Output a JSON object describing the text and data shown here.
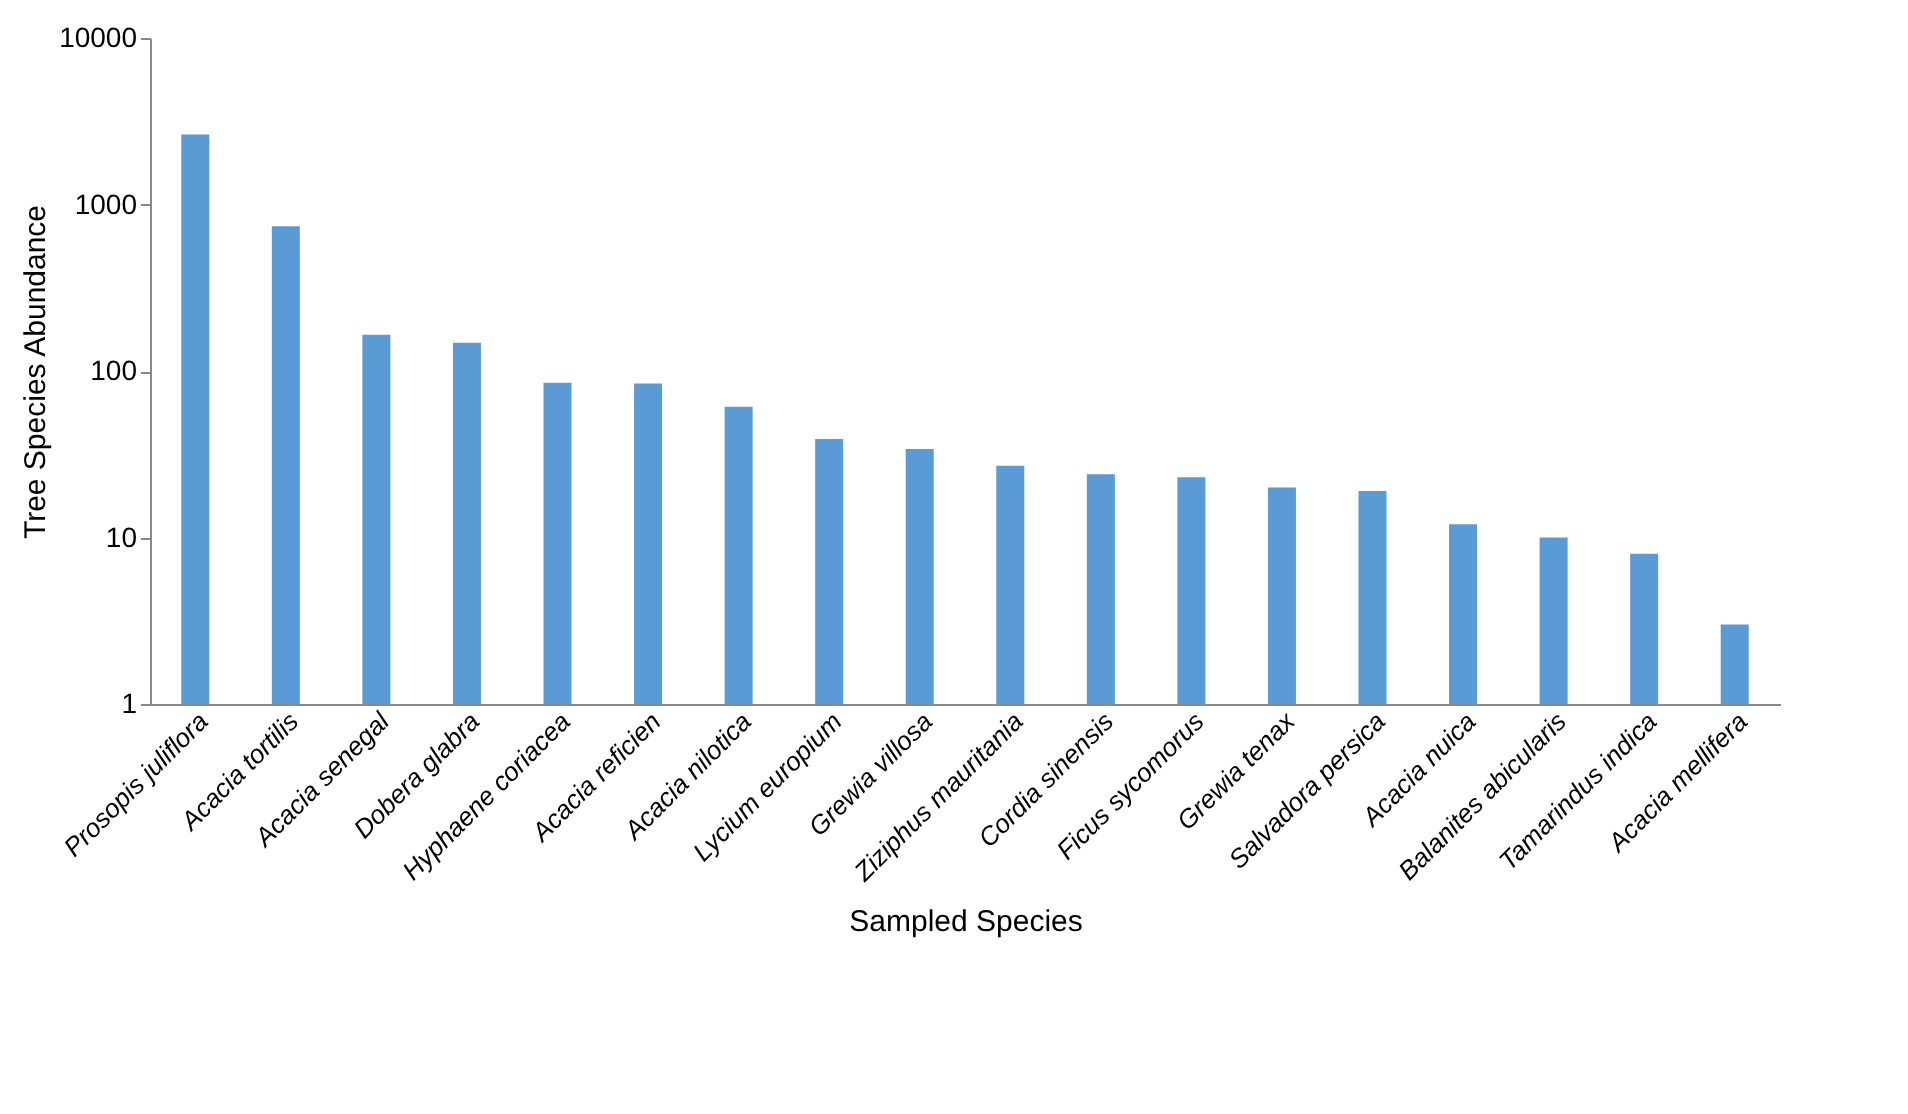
{
  "chart_data": {
    "type": "bar",
    "xlabel": "Sampled Species",
    "ylabel": "Tree Species Abundance",
    "categories": [
      "Prosopis juliflora",
      "Acacia tortilis",
      "Acacia senegal",
      "Dobera glabra",
      "Hyphaene coriacea",
      "Acacia reficien",
      "Acacia nilotica",
      "Lycium europium",
      "Grewia villosa",
      "Ziziphus mauritania",
      "Cordia sinensis",
      "Ficus sycomorus",
      "Grewia tenax",
      "Salvadora persica",
      "Acacia nuica",
      "Balanites abicularis",
      "Tamarindus indica",
      "Acacia mellifera"
    ],
    "series": [
      {
        "color": "#5b9bd5",
        "values": [
          2630,
          740,
          165,
          148,
          85,
          84,
          61,
          39,
          34,
          27,
          24,
          23,
          20,
          19,
          12,
          10,
          8,
          3
        ]
      }
    ],
    "log": "y",
    "ylim": [
      1,
      10000
    ],
    "yticks": [
      1,
      10,
      100,
      1000,
      10000
    ],
    "grid": false
  }
}
